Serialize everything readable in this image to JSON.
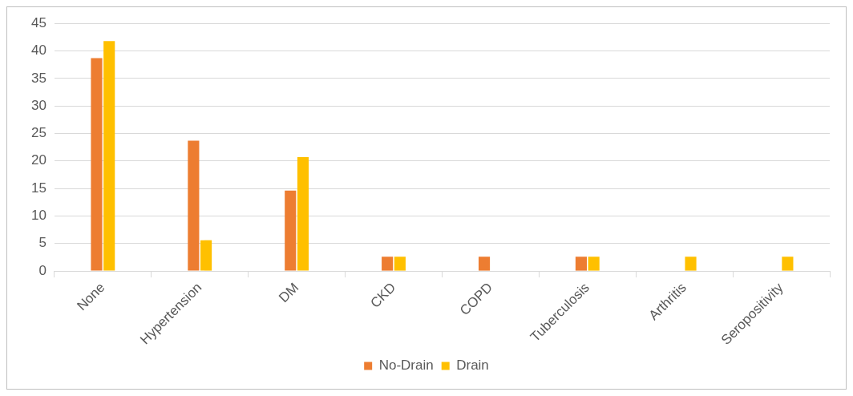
{
  "chart_data": {
    "type": "bar",
    "categories": [
      "None",
      "Hypertension",
      "DM",
      "CKD",
      "COPD",
      "Tuberculosis",
      "Arthritis",
      "Seropositivity"
    ],
    "series": [
      {
        "name": "No-Drain",
        "color": "#ed7d31",
        "values": [
          38.7,
          23.7,
          14.6,
          2.6,
          2.6,
          2.6,
          null,
          null
        ]
      },
      {
        "name": "Drain",
        "color": "#ffc000",
        "values": [
          41.8,
          5.6,
          20.7,
          2.6,
          null,
          2.6,
          2.6,
          2.6
        ]
      }
    ],
    "ylim": [
      0,
      45
    ],
    "yticks": [
      0,
      5,
      10,
      15,
      20,
      25,
      30,
      35,
      40,
      45
    ],
    "grid": "y",
    "legend": "bottom"
  }
}
